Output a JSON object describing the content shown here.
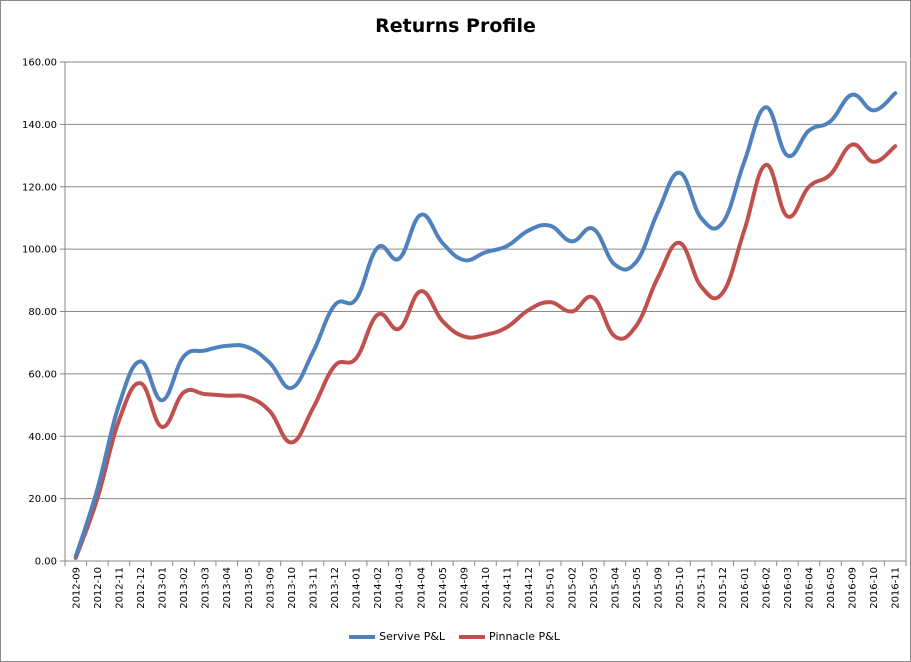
{
  "chart_data": {
    "type": "line",
    "title": "Returns Profile",
    "xlabel": "",
    "ylabel": "",
    "ylim": [
      0,
      160
    ],
    "yticks": [
      "0.00",
      "20.00",
      "40.00",
      "60.00",
      "80.00",
      "100.00",
      "120.00",
      "140.00",
      "160.00"
    ],
    "grid": true,
    "legend_position": "bottom",
    "categories": [
      "2012-09",
      "2012-10",
      "2012-11",
      "2012-12",
      "2013-01",
      "2013-02",
      "2013-03",
      "2013-04",
      "2013-05",
      "2013-09",
      "2013-10",
      "2013-11",
      "2013-12",
      "2014-01",
      "2014-02",
      "2014-03",
      "2014-04",
      "2014-05",
      "2014-09",
      "2014-10",
      "2014-11",
      "2014-12",
      "2015-01",
      "2015-02",
      "2015-03",
      "2015-04",
      "2015-05",
      "2015-09",
      "2015-10",
      "2015-11",
      "2015-12",
      "2016-01",
      "2016-02",
      "2016-03",
      "2016-04",
      "2016-05",
      "2016-09",
      "2016-10",
      "2016-11"
    ],
    "series": [
      {
        "name": "Servive P&L",
        "color": "#4f81bd",
        "values": [
          1.5,
          23,
          50,
          64,
          51.5,
          65.5,
          67.5,
          69,
          68.5,
          63.5,
          55.5,
          67,
          82,
          84,
          100.5,
          97,
          111,
          102,
          96.5,
          99,
          101,
          106,
          107.5,
          102.5,
          106.5,
          95,
          96,
          112,
          124.5,
          110,
          108.5,
          128,
          145.5,
          130,
          138,
          141,
          149.5,
          144.5,
          150
        ]
      },
      {
        "name": "Pinnacle P&L",
        "color": "#c0504d",
        "values": [
          1,
          20,
          45,
          57,
          43,
          54,
          53.5,
          53,
          52.5,
          48,
          38,
          49,
          62.5,
          65,
          79,
          74.5,
          86.5,
          77,
          72,
          72.5,
          75,
          80.5,
          83,
          80,
          84.5,
          72,
          75.5,
          91,
          102,
          88,
          86,
          106,
          127,
          110.5,
          120,
          124,
          133.5,
          128,
          133
        ]
      }
    ]
  }
}
